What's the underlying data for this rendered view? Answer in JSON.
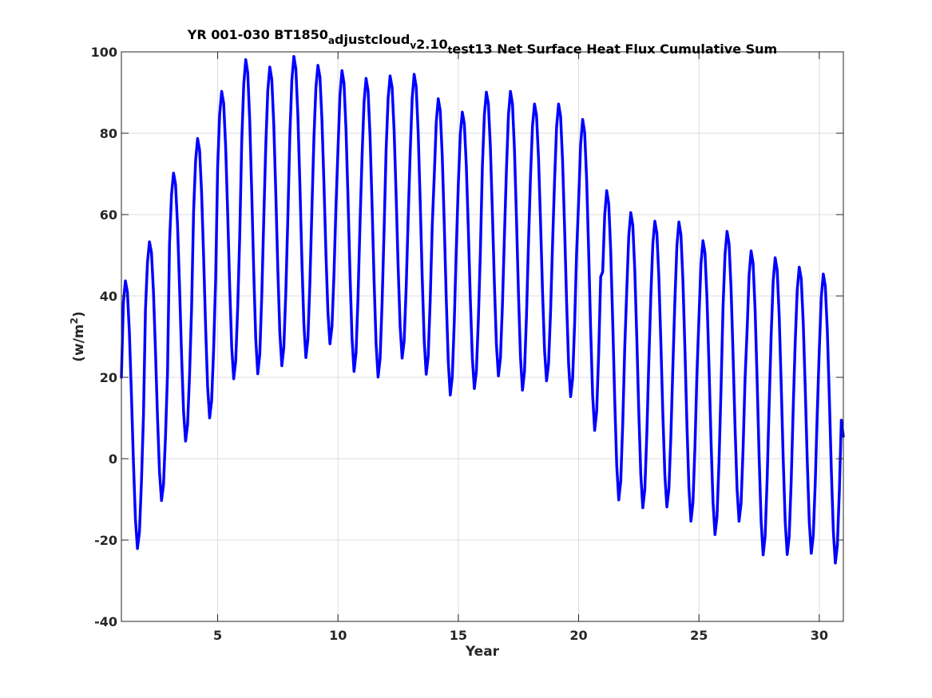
{
  "chart_data": {
    "type": "line",
    "title": {
      "parts": [
        {
          "text": "YR 001-030 BT1850",
          "sub": false
        },
        {
          "text": "a",
          "sub": true
        },
        {
          "text": "djustcloud",
          "sub": false
        },
        {
          "text": "v",
          "sub": true
        },
        {
          "text": "2.10",
          "sub": false
        },
        {
          "text": "t",
          "sub": true
        },
        {
          "text": "est13 Net Surface Heat Flux  Cumulative Sum",
          "sub": false
        }
      ]
    },
    "xlabel": "Year",
    "ylabel": {
      "prefix": "(w/m",
      "sup": "2",
      "suffix": ")"
    },
    "xlim": [
      1,
      31
    ],
    "ylim": [
      -40,
      100
    ],
    "xticks": [
      5,
      10,
      15,
      20,
      25,
      30
    ],
    "yticks": [
      -40,
      -20,
      0,
      20,
      40,
      60,
      80,
      100
    ],
    "xtick_labels": [
      "5",
      "10",
      "15",
      "20",
      "25",
      "30"
    ],
    "ytick_labels": [
      "-40",
      "-20",
      "0",
      "20",
      "40",
      "60",
      "80",
      "100"
    ],
    "grid": true,
    "legend": "none",
    "series": [
      {
        "color": "#0000ff",
        "line_width": 3.5,
        "points_per_year": 12,
        "phase_offset": 0.18,
        "x_start": 1.0,
        "x_end": 31.0,
        "start_value": 20,
        "end_value": 5.5,
        "year_peaks": [
          43.8,
          53.4,
          70.3,
          78.8,
          90.4,
          98.2,
          96.4,
          99.0,
          96.8,
          95.5,
          93.6,
          94.2,
          94.6,
          88.6,
          85.3,
          90.2,
          90.4,
          87.3,
          87.3,
          83.5,
          66.0,
          60.6,
          58.5,
          58.3,
          53.7,
          56.0,
          51.2,
          49.5,
          47.2,
          45.5
        ],
        "year_troughs": [
          -22.3,
          -10.5,
          4.1,
          9.8,
          19.4,
          20.6,
          22.6,
          24.6,
          28.0,
          21.2,
          19.8,
          24.5,
          20.5,
          15.4,
          17.0,
          20.1,
          16.6,
          18.9,
          15.0,
          6.7,
          -10.4,
          -12.3,
          -12.1,
          -15.6,
          -18.9,
          -15.6,
          -23.9,
          -23.8,
          -23.5,
          -25.9
        ]
      }
    ]
  }
}
